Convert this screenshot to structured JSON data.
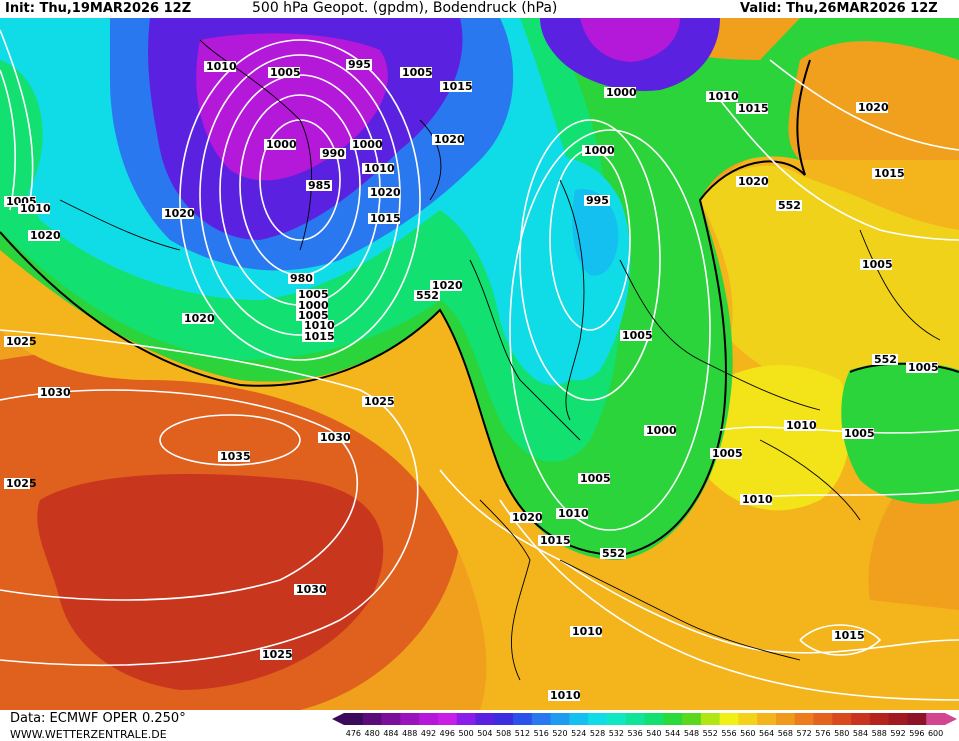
{
  "header": {
    "init": "Init: Thu,19MAR2026 12Z",
    "title": "500 hPa Geopot. (gpdm), Bodendruck (hPa)",
    "valid": "Valid: Thu,26MAR2026 12Z"
  },
  "footer": {
    "data_source": "Data: ECMWF OPER 0.250°",
    "website": "WWW.WETTERZENTRALE.DE"
  },
  "scale": {
    "labels": [
      "476",
      "480",
      "484",
      "488",
      "492",
      "496",
      "500",
      "504",
      "508",
      "512",
      "516",
      "520",
      "524",
      "528",
      "532",
      "536",
      "540",
      "544",
      "548",
      "552",
      "556",
      "560",
      "564",
      "568",
      "572",
      "576",
      "580",
      "584",
      "588",
      "592",
      "596",
      "600"
    ],
    "colors": [
      "#3c0a5a",
      "#5a0c78",
      "#7a109a",
      "#9a14bc",
      "#b418d8",
      "#c81ee8",
      "#8a1ee8",
      "#5a22e0",
      "#3a2ee0",
      "#2a52ea",
      "#2a78f0",
      "#1e9cf0",
      "#14c0f0",
      "#10dce8",
      "#10e8c4",
      "#10e498",
      "#12e070",
      "#2ada3a",
      "#5ad81e",
      "#b0e614",
      "#f0f014",
      "#f4d21a",
      "#f4b41c",
      "#f09a1c",
      "#ec7c1c",
      "#e4621e",
      "#d84a1e",
      "#c8341e",
      "#b4241c",
      "#a01a20",
      "#8c1426",
      "#d24690"
    ]
  },
  "map": {
    "pressure_labels": [
      "1010",
      "1005",
      "995",
      "1005",
      "1015",
      "1000",
      "1010",
      "1015",
      "1000",
      "1000",
      "1020",
      "990",
      "1010",
      "985",
      "1020",
      "1000",
      "1015",
      "995",
      "1020",
      "1020",
      "1020",
      "1015",
      "1005",
      "1010",
      "1020",
      "980",
      "1005",
      "1000",
      "1005",
      "1010",
      "1015",
      "1020",
      "1005",
      "1025",
      "1020",
      "552",
      "1030",
      "1025",
      "1030",
      "1035",
      "1005",
      "1000",
      "1005",
      "1010",
      "1025",
      "1020",
      "1010",
      "1015",
      "1030",
      "1025",
      "1010",
      "1010",
      "1015",
      "1010",
      "552",
      "552",
      "552",
      "1005",
      "1005",
      "1005"
    ],
    "geopotential_contours": [
      "552",
      "552",
      "552",
      "552",
      "552"
    ]
  }
}
